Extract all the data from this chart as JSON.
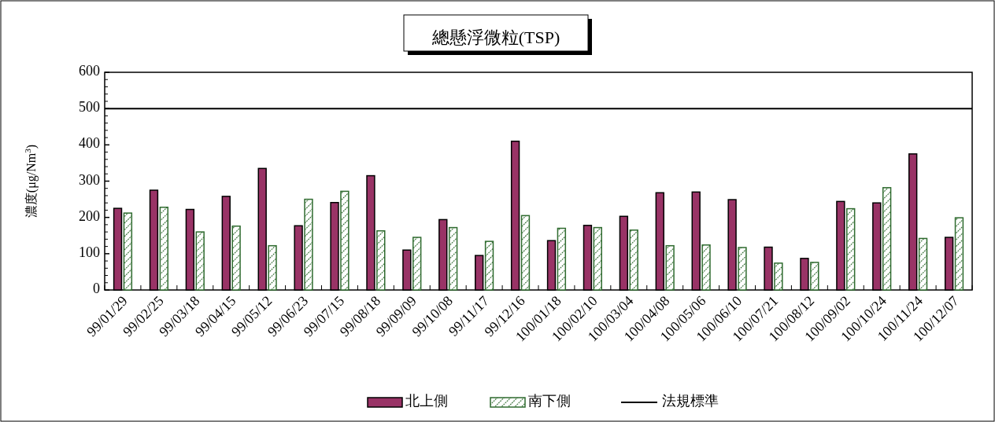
{
  "chart_data": {
    "type": "bar",
    "title": "總懸浮微粒(TSP)",
    "ylabel": "濃度(μg/Nm$^{3}$)",
    "categories": [
      "99/01/29",
      "99/02/25",
      "99/03/18",
      "99/04/15",
      "99/05/12",
      "99/06/23",
      "99/07/15",
      "99/08/18",
      "99/09/09",
      "99/10/08",
      "99/11/17",
      "99/12/16",
      "100/01/18",
      "100/02/10",
      "100/03/04",
      "100/04/08",
      "100/05/06",
      "100/06/10",
      "100/07/21",
      "100/08/12",
      "100/09/02",
      "100/10/24",
      "100/11/24",
      "100/12/07"
    ],
    "series": [
      {
        "name": "北上側",
        "color": "#993366",
        "values": [
          225,
          275,
          222,
          258,
          335,
          177,
          241,
          315,
          110,
          194,
          95,
          410,
          136,
          178,
          203,
          268,
          270,
          249,
          118,
          87,
          244,
          240,
          375,
          145
        ]
      },
      {
        "name": "南下側",
        "color": "#2f6b2f",
        "values": [
          212,
          228,
          160,
          176,
          122,
          250,
          272,
          163,
          145,
          172,
          134,
          205,
          170,
          172,
          165,
          122,
          124,
          117,
          74,
          76,
          224,
          282,
          142,
          199
        ]
      }
    ],
    "ylim": [
      0,
      600
    ],
    "yticks": [
      0,
      100,
      200,
      300,
      400,
      500,
      600
    ],
    "ref_lines": [
      {
        "axis": "y",
        "value": 500,
        "label": "法規標準",
        "color": "#000000"
      }
    ],
    "legend": "bottom",
    "grid": false
  }
}
